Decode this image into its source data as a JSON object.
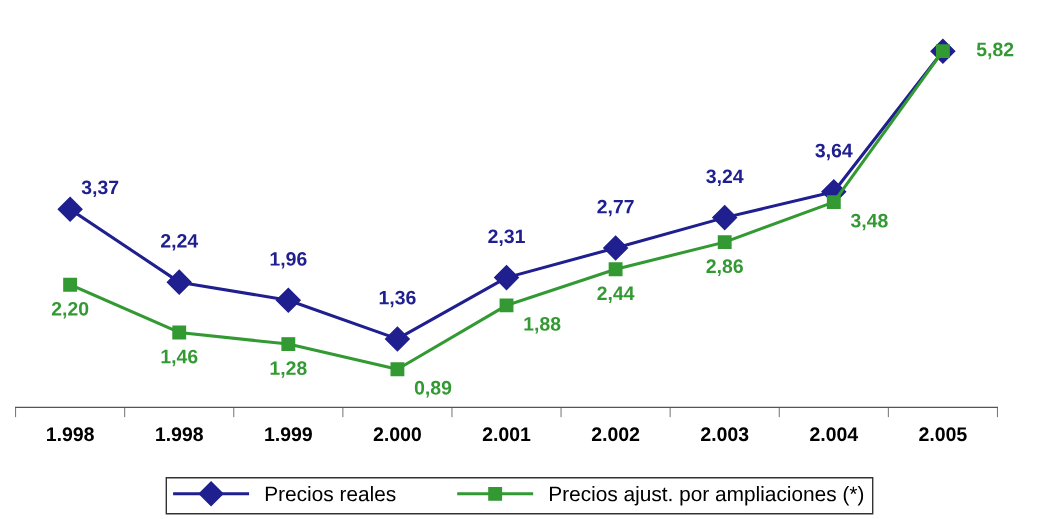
{
  "chart_data": {
    "type": "line",
    "categories": [
      "1.998",
      "1.998",
      "1.999",
      "2.000",
      "2.001",
      "2.002",
      "2.003",
      "2.004",
      "2.005"
    ],
    "legend": "bottom",
    "line_style": "solid",
    "grid": false,
    "tick_labels": "x",
    "series": [
      {
        "name": "Precios reales",
        "color": "#1f1f8f",
        "marker": "diamond",
        "values": [
          3.37,
          2.24,
          1.96,
          1.36,
          2.31,
          2.77,
          3.24,
          3.64,
          5.82
        ],
        "value_labels": [
          "3,37",
          "2,24",
          "1,96",
          "1,36",
          "2,31",
          "2,77",
          "3,24",
          "3,64",
          null
        ]
      },
      {
        "name": "Precios ajust. por ampliaciones (*)",
        "color": "#339933",
        "marker": "square",
        "values": [
          2.2,
          1.46,
          1.28,
          0.89,
          1.88,
          2.44,
          2.86,
          3.48,
          5.82
        ],
        "value_labels": [
          "2,20",
          "1,46",
          "1,28",
          "0,89",
          "1,88",
          "2,44",
          "2,86",
          "3,48",
          "5,82"
        ]
      }
    ]
  }
}
